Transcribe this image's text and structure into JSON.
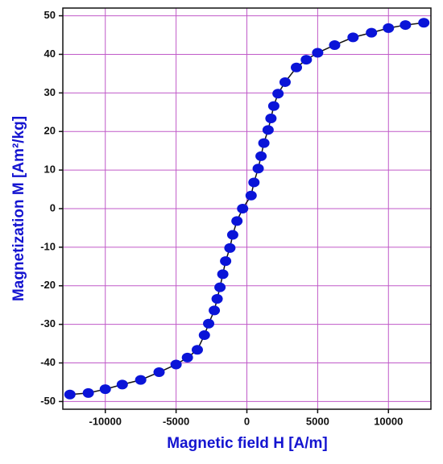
{
  "chart_data": {
    "type": "scatter",
    "x_label": "Magnetic field H [A/m]",
    "y_label": "Magnetization M [Am²/kg]",
    "series": [
      {
        "color": "#0a14d8",
        "x": [
          -12500,
          -11200,
          -10000,
          -8800,
          -7500,
          -6200,
          -5000,
          -4200,
          -3500,
          -3000,
          -2700,
          -2300,
          -2100,
          -1900,
          -1700,
          -1500,
          -1200,
          -1000,
          -700,
          -300,
          300,
          500,
          800,
          1000,
          1200,
          1500,
          1700,
          1900,
          2200,
          2700,
          3500,
          4200,
          5000,
          6200,
          7500,
          8800,
          10000,
          11200,
          12500
        ],
        "values": [
          -48.2,
          -47.8,
          -46.8,
          -45.6,
          -44.4,
          -42.4,
          -40.4,
          -38.6,
          -36.6,
          -32.8,
          -29.8,
          -26.4,
          -23.4,
          -20.4,
          -17.0,
          -13.6,
          -10.2,
          -6.8,
          -3.2,
          0,
          3.4,
          6.8,
          10.4,
          13.6,
          17.0,
          20.4,
          23.4,
          26.6,
          29.8,
          32.8,
          36.6,
          38.6,
          40.4,
          42.4,
          44.4,
          45.6,
          46.8,
          47.6,
          48.2
        ]
      }
    ],
    "xlim": [
      -13000,
      13000
    ],
    "xticks": [
      -10000,
      -5000,
      0,
      5000,
      10000
    ],
    "ylim": [
      -52,
      52
    ],
    "yticks": [
      -50,
      -40,
      -30,
      -20,
      -10,
      0,
      10,
      20,
      30,
      40,
      50
    ],
    "grid": true,
    "grid_color": "#c05ac8",
    "line_color": "#111111"
  }
}
